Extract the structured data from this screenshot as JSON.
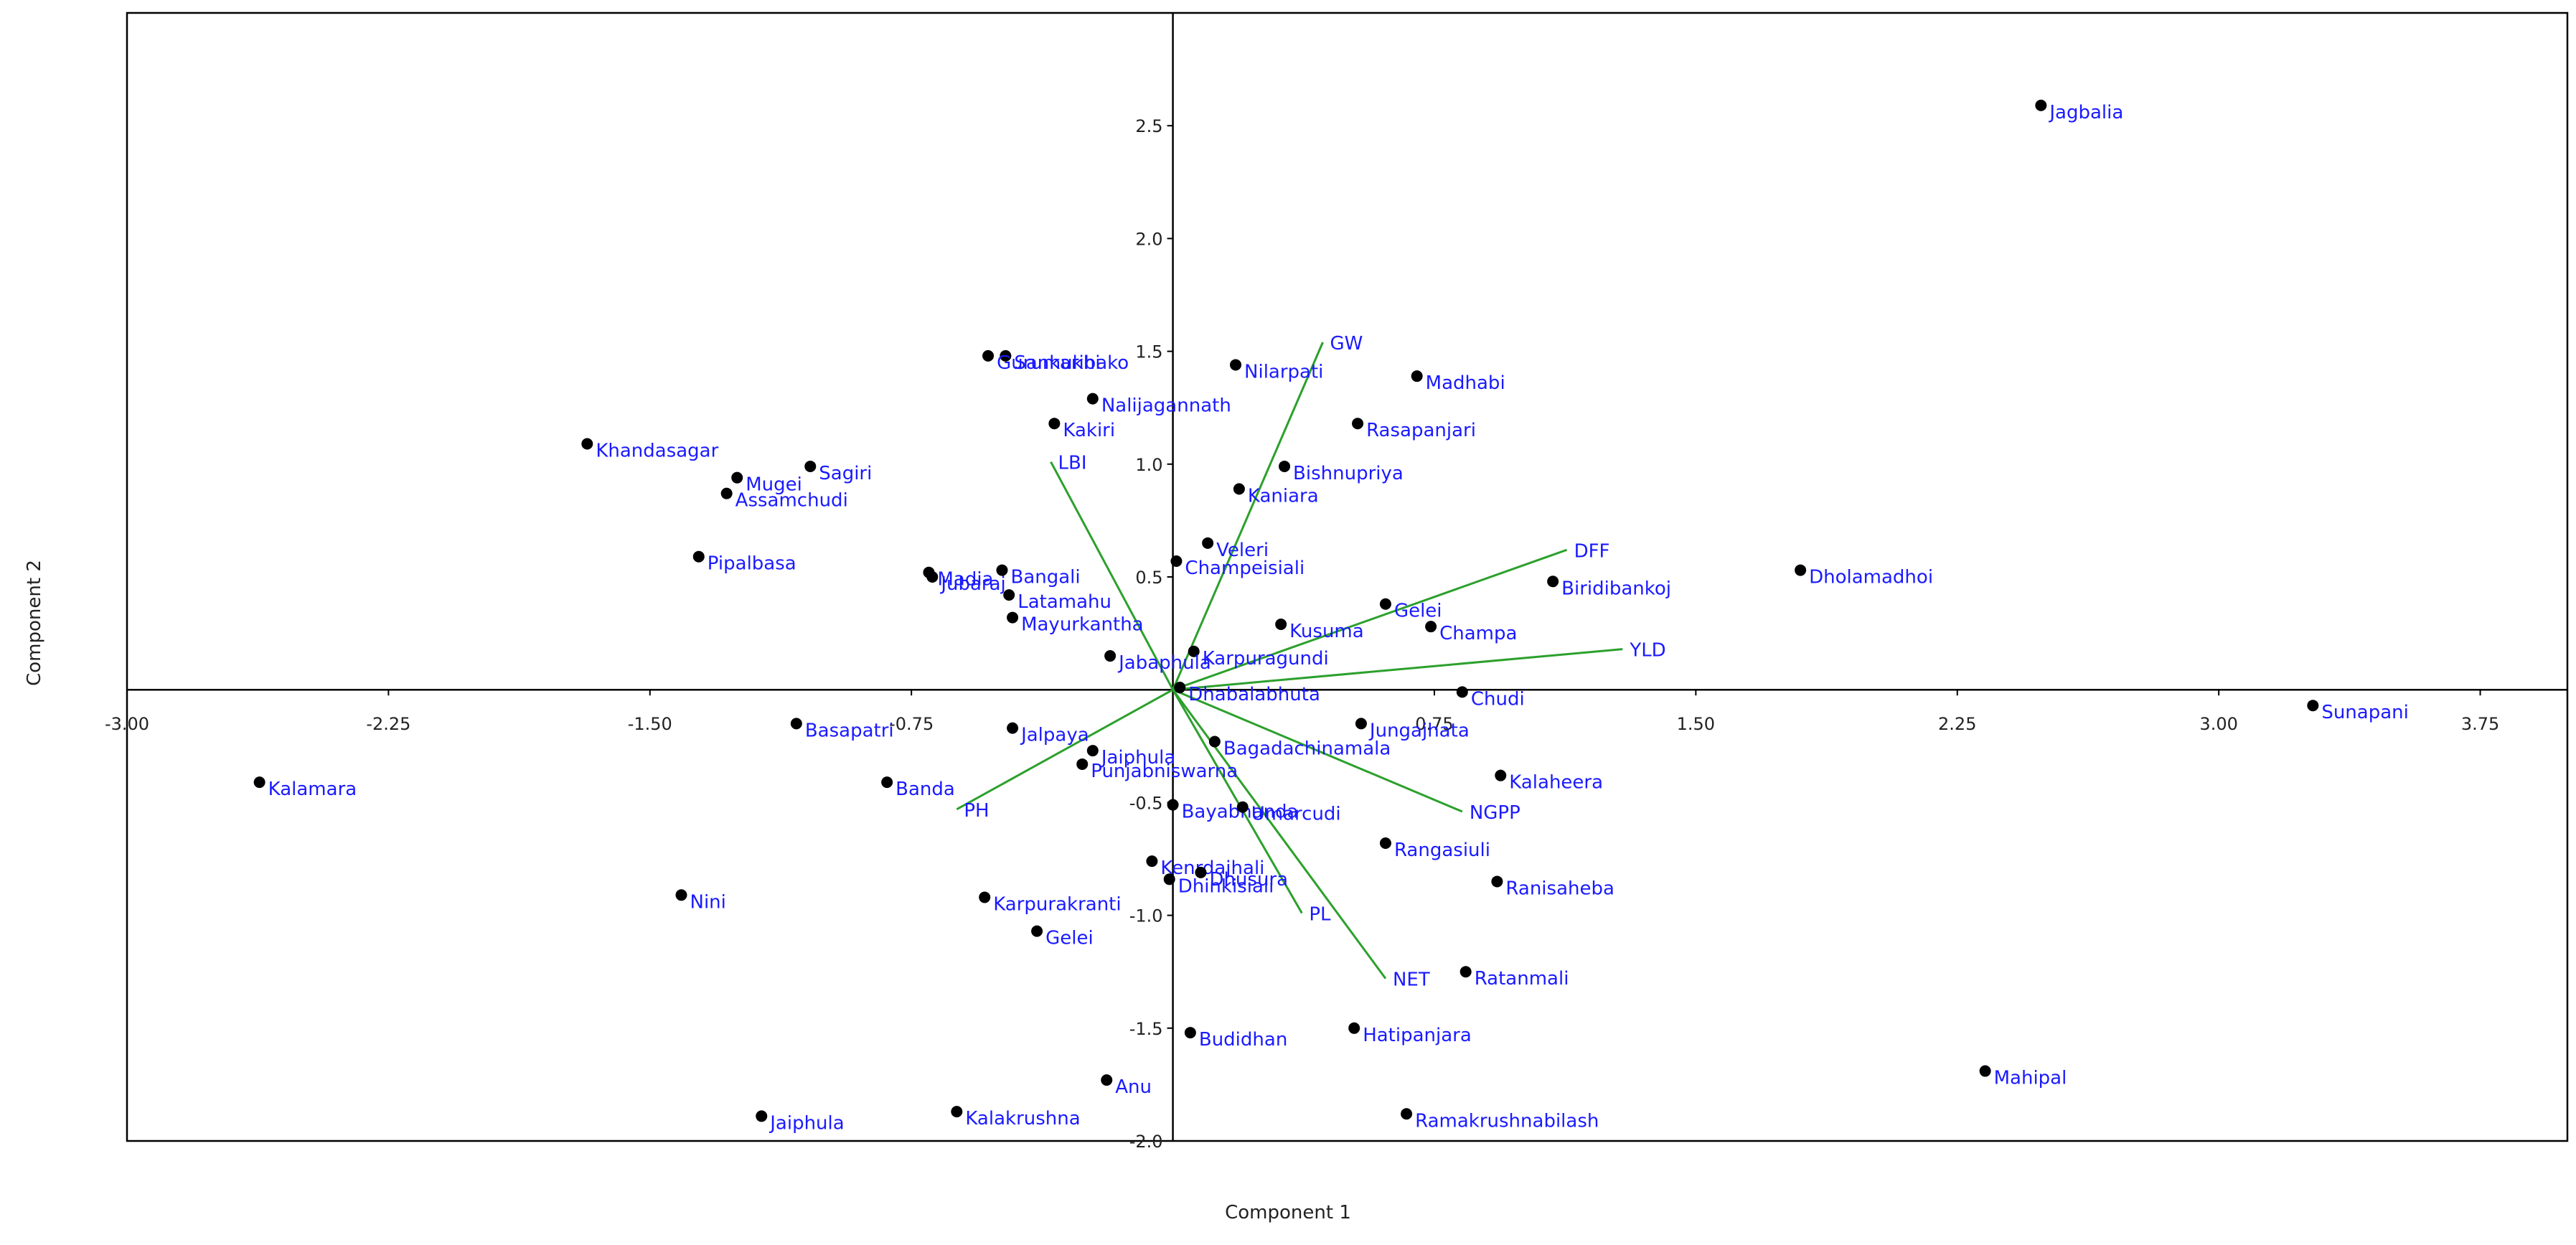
{
  "chart_data": {
    "type": "scatter",
    "xlabel": "Component 1",
    "ylabel": "Component 2",
    "xlim": [
      -3.0,
      4.0
    ],
    "ylim": [
      -2.0,
      3.0
    ],
    "xticks": [
      "-3.00",
      "-2.25",
      "-1.50",
      "-0.75",
      "0.75",
      "1.50",
      "2.25",
      "3.00",
      "3.75"
    ],
    "yticks": [
      "2.5",
      "2.0",
      "1.5",
      "1.0",
      "0.5",
      "-0.5",
      "-1.0",
      "-1.5",
      "-2.0"
    ],
    "grid": false,
    "colors": {
      "point": "#000000",
      "label": "#1a1aff",
      "vector": "#2ca02c",
      "axis": "#000000"
    },
    "points": [
      {
        "name": "Jagbalia",
        "x": 2.49,
        "y": 2.59
      },
      {
        "name": "Sunapani",
        "x": 3.27,
        "y": -0.07
      },
      {
        "name": "Mahipal",
        "x": 2.33,
        "y": -1.69
      },
      {
        "name": "Dholamadhoi",
        "x": 1.8,
        "y": 0.53
      },
      {
        "name": "Biridibankoj",
        "x": 1.09,
        "y": 0.48
      },
      {
        "name": "Sankaribako",
        "x": -0.48,
        "y": 1.48
      },
      {
        "name": "Gurumukhi",
        "x": -0.53,
        "y": 1.48
      },
      {
        "name": "Nilarpati",
        "x": 0.18,
        "y": 1.44
      },
      {
        "name": "Madhabi",
        "x": 0.7,
        "y": 1.39
      },
      {
        "name": "Nalijagannath",
        "x": -0.23,
        "y": 1.29
      },
      {
        "name": "Rasapanjari",
        "x": 0.53,
        "y": 1.18
      },
      {
        "name": "Kakiri",
        "x": -0.34,
        "y": 1.18
      },
      {
        "name": "Khandasagar",
        "x": -1.68,
        "y": 1.09
      },
      {
        "name": "Sagiri",
        "x": -1.04,
        "y": 0.99
      },
      {
        "name": "Bishnupriya",
        "x": 0.32,
        "y": 0.99
      },
      {
        "name": "Mugei",
        "x": -1.25,
        "y": 0.94
      },
      {
        "name": "Assamchudi",
        "x": -1.28,
        "y": 0.87
      },
      {
        "name": "Kaniara",
        "x": 0.19,
        "y": 0.89
      },
      {
        "name": "Veleri",
        "x": 0.1,
        "y": 0.65
      },
      {
        "name": "Pipalbasa",
        "x": -1.36,
        "y": 0.59
      },
      {
        "name": "Champeisiali",
        "x": 0.01,
        "y": 0.57
      },
      {
        "name": "Madia",
        "x": -0.7,
        "y": 0.52
      },
      {
        "name": "Jubaraj",
        "x": -0.69,
        "y": 0.5
      },
      {
        "name": "Bangali",
        "x": -0.49,
        "y": 0.53
      },
      {
        "name": "Latamahu",
        "x": -0.47,
        "y": 0.42
      },
      {
        "name": "Gelei",
        "x": 0.61,
        "y": 0.38
      },
      {
        "name": "Mayurkantha",
        "x": -0.46,
        "y": 0.32
      },
      {
        "name": "Kusuma",
        "x": 0.31,
        "y": 0.29
      },
      {
        "name": "Champa",
        "x": 0.74,
        "y": 0.28
      },
      {
        "name": "Karpuragundi",
        "x": 0.06,
        "y": 0.17
      },
      {
        "name": "Jabaphula",
        "x": -0.18,
        "y": 0.15
      },
      {
        "name": "Chudi",
        "x": 0.83,
        "y": -0.01
      },
      {
        "name": "Dhabalabhuta",
        "x": 0.02,
        "y": 0.01
      },
      {
        "name": "Jungajhata",
        "x": 0.54,
        "y": -0.15
      },
      {
        "name": "Basapatri",
        "x": -1.08,
        "y": -0.15
      },
      {
        "name": "Jalpaya",
        "x": -0.46,
        "y": -0.17
      },
      {
        "name": "Bagadachinamala",
        "x": 0.12,
        "y": -0.23
      },
      {
        "name": "Jaiphula",
        "x": -0.23,
        "y": -0.27
      },
      {
        "name": "Punjabniswarna",
        "x": -0.26,
        "y": -0.33
      },
      {
        "name": "Kalamara",
        "x": -2.62,
        "y": -0.41
      },
      {
        "name": "Banda",
        "x": -0.82,
        "y": -0.41
      },
      {
        "name": "Kalaheera",
        "x": 0.94,
        "y": -0.38
      },
      {
        "name": "Bayabhanda",
        "x": 0.0,
        "y": -0.51
      },
      {
        "name": "Umarcudi",
        "x": 0.2,
        "y": -0.52
      },
      {
        "name": "Rangasiuli",
        "x": 0.61,
        "y": -0.68
      },
      {
        "name": "Kenrdajhali",
        "x": -0.06,
        "y": -0.76
      },
      {
        "name": "Dhinkisiali",
        "x": -0.01,
        "y": -0.84
      },
      {
        "name": "Dhusura",
        "x": 0.08,
        "y": -0.81
      },
      {
        "name": "Ranisaheba",
        "x": 0.93,
        "y": -0.85
      },
      {
        "name": "Nini",
        "x": -1.41,
        "y": -0.91
      },
      {
        "name": "Karpurakranti",
        "x": -0.54,
        "y": -0.92
      },
      {
        "name": "Gelei",
        "x": -0.39,
        "y": -1.07
      },
      {
        "name": "Ratanmali",
        "x": 0.84,
        "y": -1.25
      },
      {
        "name": "Budidhan",
        "x": 0.05,
        "y": -1.52
      },
      {
        "name": "Hatipanjara",
        "x": 0.52,
        "y": -1.5
      },
      {
        "name": "Anu",
        "x": -0.19,
        "y": -1.73
      },
      {
        "name": "Kalakrushna",
        "x": -0.62,
        "y": -1.87
      },
      {
        "name": "Jaiphula",
        "x": -1.18,
        "y": -1.89
      },
      {
        "name": "Ramakrushnabilash",
        "x": 0.67,
        "y": -1.88
      }
    ],
    "vectors": [
      {
        "name": "GW",
        "x": 0.43,
        "y": 1.54
      },
      {
        "name": "LBI",
        "x": -0.35,
        "y": 1.01
      },
      {
        "name": "DFF",
        "x": 1.13,
        "y": 0.62
      },
      {
        "name": "YLD",
        "x": 1.29,
        "y": 0.18
      },
      {
        "name": "NGPP",
        "x": 0.83,
        "y": -0.54
      },
      {
        "name": "PL",
        "x": 0.37,
        "y": -0.99
      },
      {
        "name": "NET",
        "x": 0.61,
        "y": -1.28
      },
      {
        "name": "PH",
        "x": -0.62,
        "y": -0.53
      }
    ]
  }
}
